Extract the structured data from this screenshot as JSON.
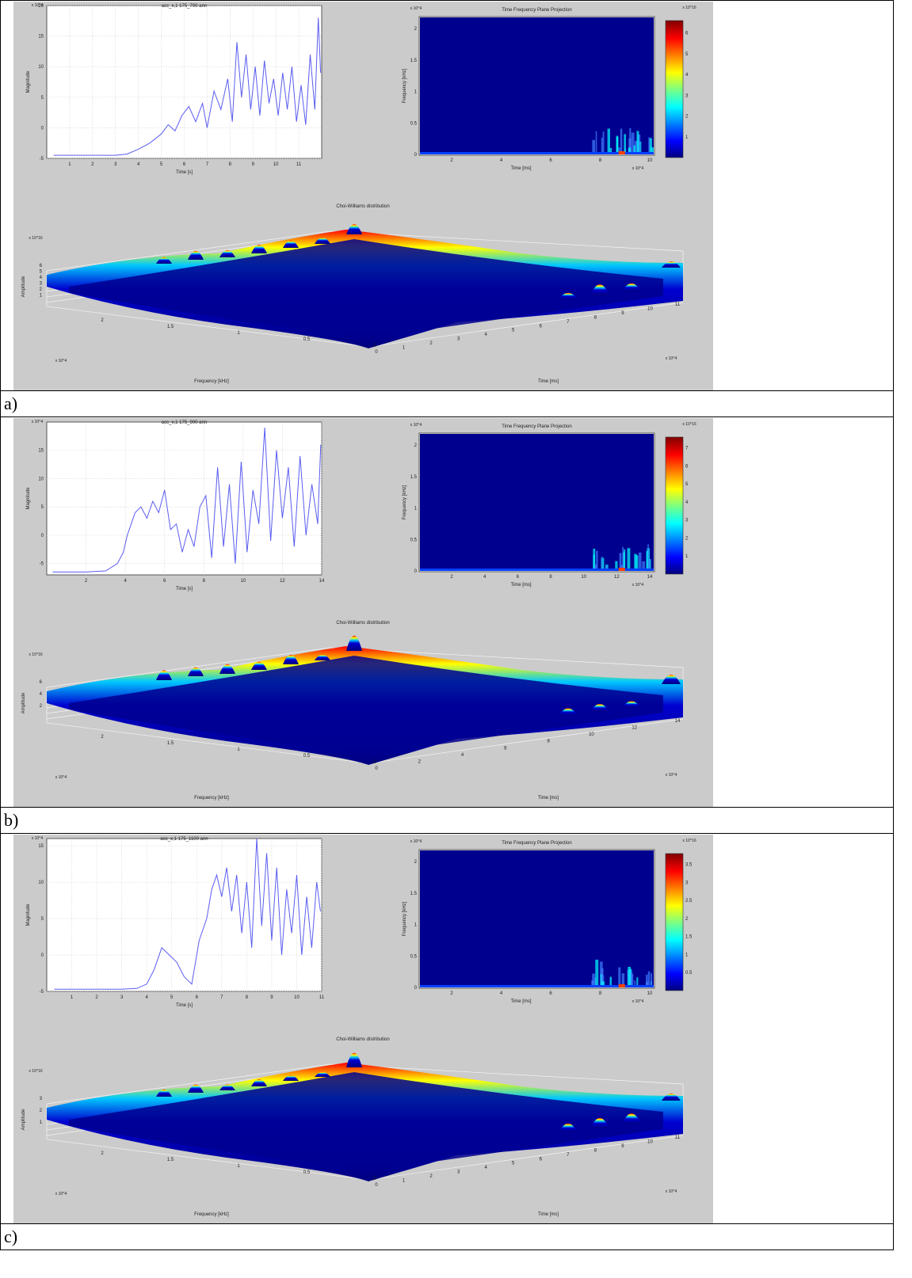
{
  "labels": [
    "a)",
    "b)",
    "c)"
  ],
  "colors": {
    "signal": "#5a5cf0",
    "panel_bg": "#cbcbcb",
    "jet_low": "#00008f",
    "jet_high": "#800000"
  },
  "common": {
    "sig_ylabel": "Magnitude",
    "sig_xlabel": "Time [s]",
    "tf_title": "Time Frequency Plane Projection",
    "tf_ylabel": "Frequency [kHz]",
    "tf_xlabel": "Time [ms]",
    "cw_title": "Choi-Williams distribution",
    "cw_zlabel": "Amplitude",
    "cw_flabel": "Frequency [kHz]",
    "cw_tlabel": "Time [ms]",
    "tf_yticks": [
      "0",
      "0.5",
      "1",
      "1.5",
      "2"
    ],
    "cw_fticks": [
      "2",
      "1.5",
      "1",
      "0.5",
      "0"
    ]
  },
  "chart_data": [
    {
      "type": "line",
      "title": "acc_x,1 175_700 ann",
      "exp": "x 10^4",
      "ylim": [
        -5,
        20
      ],
      "yticks": [
        "-5",
        "0",
        "5",
        "10",
        "15",
        "20"
      ],
      "xlim": [
        0,
        12
      ],
      "xticks": [
        "1",
        "2",
        "3",
        "4",
        "5",
        "6",
        "7",
        "8",
        "9",
        "10",
        "11"
      ],
      "x": [
        0.3,
        1,
        2,
        3,
        3.5,
        4,
        4.5,
        5,
        5.3,
        5.6,
        5.9,
        6.2,
        6.5,
        6.8,
        7.0,
        7.3,
        7.6,
        7.9,
        8.1,
        8.3,
        8.5,
        8.7,
        8.9,
        9.1,
        9.3,
        9.5,
        9.7,
        9.9,
        10.1,
        10.3,
        10.5,
        10.7,
        10.9,
        11.1,
        11.3,
        11.5,
        11.7,
        11.85,
        11.95
      ],
      "y": [
        -4.5,
        -4.5,
        -4.5,
        -4.5,
        -4.3,
        -3.5,
        -2.5,
        -1,
        0.5,
        -0.5,
        2,
        3.5,
        1,
        4,
        0,
        6,
        3,
        8,
        1,
        14,
        5,
        12,
        3,
        10,
        2,
        11,
        4,
        8,
        2,
        9,
        3,
        10,
        1,
        7,
        0.5,
        12,
        3,
        18,
        9
      ],
      "tf_exp": "x 10^4",
      "tf_xticks": [
        "2",
        "4",
        "6",
        "8",
        "10"
      ],
      "tf_xexp": "x 10^4",
      "cb_ticks": [
        "1",
        "2",
        "3",
        "4",
        "5",
        "6"
      ],
      "cb_exp": "x 10^16",
      "cw_exp": "x 10^16",
      "cw_zticks": [
        "1",
        "2",
        "3",
        "4",
        "5",
        "6"
      ],
      "cw_texp": "x 10^4",
      "cw_tticks": [
        "0",
        "1",
        "2",
        "3",
        "4",
        "5",
        "6",
        "7",
        "8",
        "9",
        "10",
        "11"
      ]
    },
    {
      "type": "line",
      "title": "acc_x,1 175_900 ann",
      "exp": "x 10^4",
      "ylim": [
        -7,
        20
      ],
      "yticks": [
        "-5",
        "0",
        "5",
        "10",
        "15"
      ],
      "xlim": [
        0,
        14
      ],
      "xticks": [
        "2",
        "4",
        "6",
        "8",
        "10",
        "12",
        "14"
      ],
      "x": [
        0.3,
        1,
        2,
        3,
        3.6,
        3.9,
        4.1,
        4.3,
        4.5,
        4.8,
        5.1,
        5.4,
        5.7,
        6.0,
        6.3,
        6.6,
        6.9,
        7.2,
        7.5,
        7.8,
        8.1,
        8.4,
        8.7,
        9.0,
        9.3,
        9.6,
        9.9,
        10.2,
        10.5,
        10.8,
        11.1,
        11.4,
        11.7,
        12.0,
        12.3,
        12.6,
        12.9,
        13.2,
        13.5,
        13.8,
        13.95
      ],
      "y": [
        -6.5,
        -6.5,
        -6.5,
        -6.3,
        -5,
        -3,
        0,
        2,
        4,
        5,
        3,
        6,
        4,
        8,
        1,
        2,
        -3,
        1,
        -2,
        5,
        7,
        -4,
        12,
        -2,
        9,
        -5,
        13,
        -3,
        8,
        2,
        19,
        -1,
        15,
        3,
        12,
        -2,
        14,
        0,
        9,
        2,
        16
      ],
      "tf_exp": "x 10^4",
      "tf_xticks": [
        "2",
        "4",
        "6",
        "8",
        "10",
        "12",
        "14"
      ],
      "tf_xexp": "x 10^4",
      "cb_ticks": [
        "1",
        "2",
        "3",
        "4",
        "5",
        "6",
        "7"
      ],
      "cb_exp": "x 10^16",
      "cw_exp": "x 10^16",
      "cw_zticks": [
        "2",
        "4",
        "6"
      ],
      "cw_texp": "x 10^4",
      "cw_tticks": [
        "0",
        "2",
        "4",
        "6",
        "8",
        "10",
        "12",
        "14"
      ]
    },
    {
      "type": "line",
      "title": "acc_x,1 175_1100 ann",
      "exp": "x 10^4",
      "ylim": [
        -5,
        16
      ],
      "yticks": [
        "-5",
        "0",
        "5",
        "10",
        "15"
      ],
      "xlim": [
        0,
        11
      ],
      "xticks": [
        "1",
        "2",
        "3",
        "4",
        "5",
        "6",
        "7",
        "8",
        "9",
        "10",
        "11"
      ],
      "x": [
        0.3,
        1,
        2,
        3,
        3.6,
        4.0,
        4.3,
        4.6,
        4.9,
        5.2,
        5.5,
        5.8,
        6.1,
        6.4,
        6.6,
        6.8,
        7.0,
        7.2,
        7.4,
        7.6,
        7.8,
        8.0,
        8.2,
        8.4,
        8.6,
        8.8,
        9.0,
        9.2,
        9.4,
        9.6,
        9.8,
        10.0,
        10.2,
        10.4,
        10.6,
        10.8,
        10.95
      ],
      "y": [
        -4.7,
        -4.7,
        -4.7,
        -4.7,
        -4.6,
        -4,
        -2,
        1,
        0,
        -1,
        -3,
        -4,
        2,
        5,
        9,
        11,
        8,
        12,
        6,
        11,
        3,
        10,
        1,
        16,
        4,
        14,
        2,
        12,
        0,
        9,
        3,
        11,
        0,
        8,
        1,
        10,
        6
      ],
      "tf_exp": "x 10^4",
      "tf_xticks": [
        "2",
        "4",
        "6",
        "8",
        "10"
      ],
      "tf_xexp": "x 10^4",
      "cb_ticks": [
        "0.5",
        "1",
        "1.5",
        "2",
        "2.5",
        "3",
        "3.5"
      ],
      "cb_exp": "x 10^16",
      "cw_exp": "x 10^16",
      "cw_zticks": [
        "1",
        "2",
        "3"
      ],
      "cw_texp": "x 10^4",
      "cw_tticks": [
        "0",
        "1",
        "2",
        "3",
        "4",
        "5",
        "6",
        "7",
        "8",
        "9",
        "10",
        "11"
      ]
    }
  ]
}
